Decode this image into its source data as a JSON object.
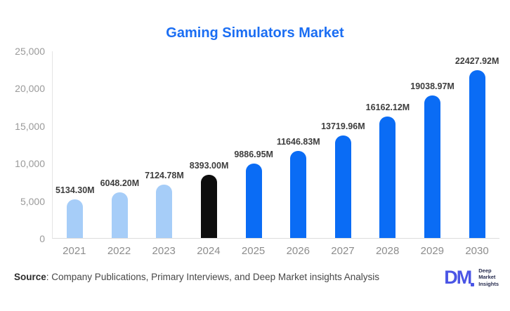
{
  "chart_data": {
    "type": "bar",
    "title": "Gaming Simulators Market",
    "categories": [
      "2021",
      "2022",
      "2023",
      "2024",
      "2025",
      "2026",
      "2027",
      "2028",
      "2029",
      "2030"
    ],
    "values": [
      5134.3,
      6048.2,
      7124.78,
      8393.0,
      9886.95,
      11646.83,
      13719.96,
      16162.12,
      19038.97,
      22427.92
    ],
    "labels": [
      "5134.30M",
      "6048.20M",
      "7124.78M",
      "8393.00M",
      "9886.95M",
      "11646.83M",
      "13719.96M",
      "16162.12M",
      "19038.97M",
      "22427.92M"
    ],
    "bar_colors": [
      "#a6cdf8",
      "#a6cdf8",
      "#a6cdf8",
      "#0d0d0d",
      "#0a6cf5",
      "#0a6cf5",
      "#0a6cf5",
      "#0a6cf5",
      "#0a6cf5",
      "#0a6cf5"
    ],
    "xlabel": "",
    "ylabel": "",
    "ylim": [
      0,
      25000
    ],
    "yticks": [
      "25,000",
      "20,000",
      "15,000",
      "10,000",
      "5,000",
      "0"
    ],
    "grid": false,
    "legend_position": "none",
    "title_color": "#1b6ef3",
    "value_label_color": "#3d3d3d",
    "axis_label_color": "#8d8d8d"
  },
  "footer": {
    "source_label": "Source",
    "source_text": ": Company Publications, Primary Interviews, and Deep Market insights Analysis",
    "logo": {
      "mark": "DM",
      "lines": [
        "Deep",
        "Market",
        "Insights"
      ],
      "mark_color": "#4a55e5"
    }
  }
}
